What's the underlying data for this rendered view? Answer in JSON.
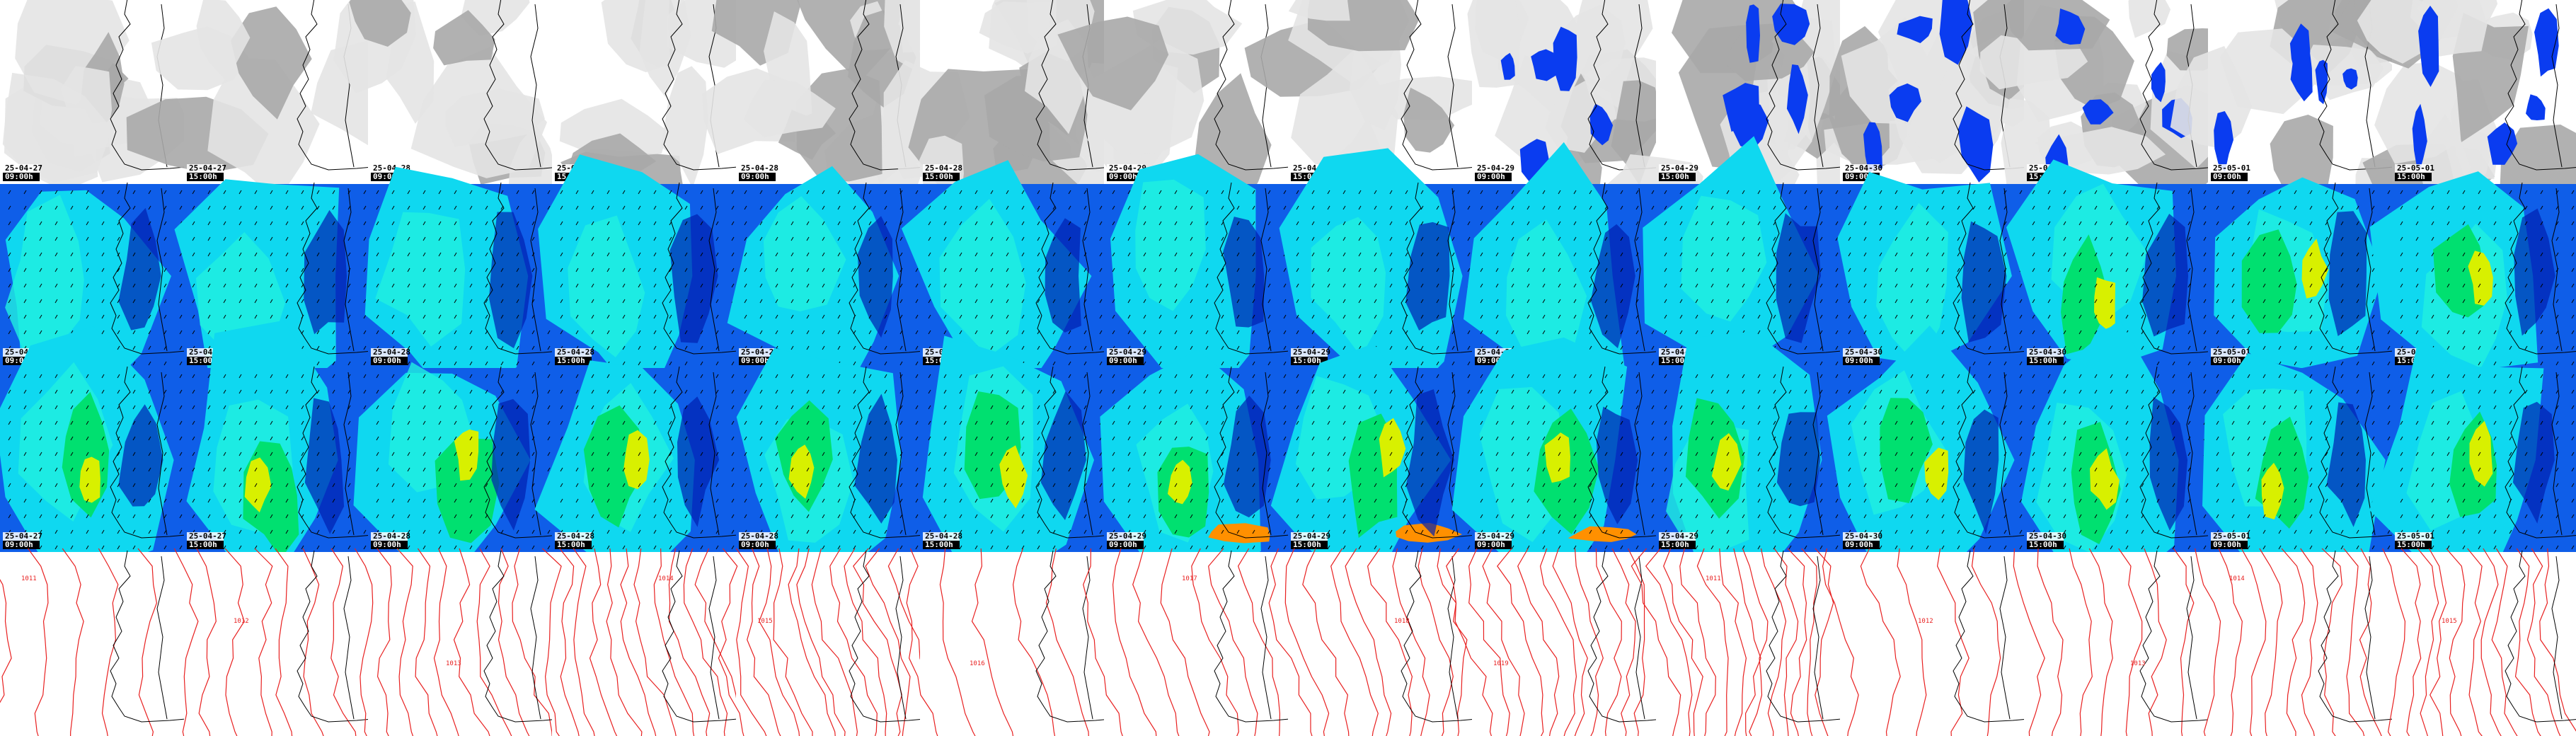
{
  "columns": [
    {
      "date": "25-04-27",
      "hour": "09:00h"
    },
    {
      "date": "25-04-27",
      "hour": "15:00h"
    },
    {
      "date": "25-04-28",
      "hour": "09:00h"
    },
    {
      "date": "25-04-28",
      "hour": "15:00h"
    },
    {
      "date": "25-04-28",
      "hour": "09:00h"
    },
    {
      "date": "25-04-28",
      "hour": "15:00h"
    },
    {
      "date": "25-04-29",
      "hour": "09:00h"
    },
    {
      "date": "25-04-29",
      "hour": "15:00h"
    },
    {
      "date": "25-04-29",
      "hour": "09:00h"
    },
    {
      "date": "25-04-29",
      "hour": "15:00h"
    },
    {
      "date": "25-04-30",
      "hour": "09:00h"
    },
    {
      "date": "25-04-30",
      "hour": "15:00h"
    },
    {
      "date": "25-05-01",
      "hour": "09:00h"
    },
    {
      "date": "25-05-01",
      "hour": "15:00h"
    }
  ],
  "rows": [
    {
      "kind": "clouds",
      "stamps": true
    },
    {
      "kind": "wind",
      "stamps": true
    },
    {
      "kind": "wind-gusts",
      "stamps": true
    },
    {
      "kind": "isobars",
      "stamps": false
    }
  ],
  "colors": {
    "cloud_light": "#e4e4e4",
    "cloud_dark": "#a8a8a8",
    "rain": "#0a3cf0",
    "wind_blue": "#0f5ee8",
    "wind_cyan": "#0fd8f0",
    "wind_green": "#00e070",
    "wind_yellow": "#d8f000",
    "wind_orange": "#ff9000",
    "isobar": "#e82020",
    "coast": "#000000"
  },
  "isobar_labels": [
    "1011",
    "1012",
    "1013",
    "1014",
    "1015",
    "1016",
    "1017",
    "1018",
    "1019"
  ]
}
